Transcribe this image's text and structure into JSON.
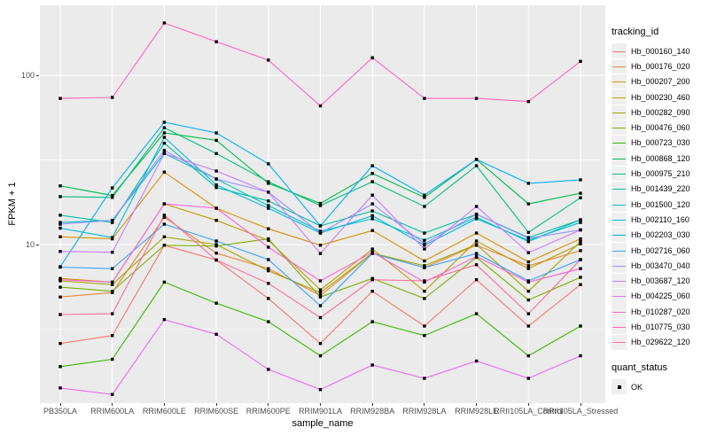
{
  "figure": {
    "xlabel": "sample_name",
    "ylabel": "FPKM + 1",
    "y_ticks": [
      "100",
      "10"
    ],
    "panel_color": "#EBEBEB",
    "grid_color": "#FFFFFF",
    "axis_text_color": "#4D4D4D",
    "marker_color": "#000000"
  },
  "legend": {
    "tracking_title": "tracking_id",
    "quant_title": "quant_status",
    "quant_items": [
      {
        "label": "OK",
        "marker": "black-square"
      }
    ]
  },
  "chart_data": {
    "type": "line",
    "log_y": true,
    "ylim": [
      1.2,
      230
    ],
    "y_major_gridlines": [
      10,
      100
    ],
    "y_minor_gridlines": [
      3.162,
      31.623
    ],
    "grid": true,
    "legend_position": "right",
    "categories": [
      "PB350LA",
      "RRIM600LA",
      "RRIM600LE",
      "RRIM600SE",
      "RRIM600PE",
      "RRIM901LA",
      "RRIM928BA",
      "RRIM928LA",
      "RRIM928LE",
      "RRII105LA_Control",
      "RRII105LA_Stressed"
    ],
    "series": [
      {
        "name": "Hb_000160_140",
        "color": "#F8766D",
        "values": [
          2.6,
          2.9,
          9.9,
          8.1,
          4.8,
          2.6,
          5.3,
          3.3,
          6.2,
          3.3,
          5.8
        ]
      },
      {
        "name": "Hb_000176_020",
        "color": "#EA8331",
        "values": [
          4.9,
          5.2,
          14.5,
          8.9,
          7.2,
          5.0,
          8.9,
          7.3,
          9.9,
          7.5,
          9.2
        ]
      },
      {
        "name": "Hb_000207_200",
        "color": "#D89000",
        "values": [
          11.1,
          10.8,
          26.8,
          16.4,
          12.4,
          9.9,
          12.1,
          8.0,
          11.7,
          7.9,
          10.8
        ]
      },
      {
        "name": "Hb_000230_460",
        "color": "#C09B00",
        "values": [
          6.3,
          6.0,
          17.4,
          13.9,
          10.6,
          5.4,
          9.4,
          5.3,
          10.5,
          7.2,
          10.1
        ]
      },
      {
        "name": "Hb_000282_090",
        "color": "#A3A500",
        "values": [
          6.1,
          5.8,
          11.1,
          10.0,
          7.0,
          5.2,
          8.9,
          7.5,
          10.0,
          5.3,
          10.4
        ]
      },
      {
        "name": "Hb_000476_060",
        "color": "#7CAE00",
        "values": [
          5.6,
          5.3,
          9.9,
          9.8,
          10.8,
          4.9,
          6.3,
          4.8,
          8.4,
          4.7,
          6.4
        ]
      },
      {
        "name": "Hb_000723_030",
        "color": "#39B600",
        "values": [
          1.9,
          2.1,
          6.0,
          4.5,
          3.5,
          2.2,
          3.5,
          2.9,
          3.9,
          2.2,
          3.3
        ]
      },
      {
        "name": "Hb_000868_120",
        "color": "#00BB4E",
        "values": [
          22.2,
          19.5,
          45.7,
          41.3,
          23.0,
          17.5,
          26.3,
          19.0,
          31.8,
          17.4,
          20.1
        ]
      },
      {
        "name": "Hb_000975_210",
        "color": "#00BF7D",
        "values": [
          19.2,
          19.0,
          49.0,
          34.5,
          23.5,
          17.0,
          23.5,
          16.8,
          29.2,
          11.8,
          18.9
        ]
      },
      {
        "name": "Hb_001439_220",
        "color": "#00C1A3",
        "values": [
          14.9,
          13.5,
          39.7,
          21.7,
          18.1,
          12.9,
          15.8,
          11.7,
          15.1,
          11.0,
          14.0
        ]
      },
      {
        "name": "Hb_001500_120",
        "color": "#00BFC4",
        "values": [
          13.5,
          13.9,
          34.5,
          24.4,
          17.0,
          12.0,
          14.2,
          10.6,
          14.5,
          10.4,
          14.0
        ]
      },
      {
        "name": "Hb_002110_160",
        "color": "#00BAE0",
        "values": [
          12.5,
          11.0,
          43.0,
          22.5,
          16.4,
          11.7,
          14.8,
          9.9,
          14.2,
          10.6,
          13.5
        ]
      },
      {
        "name": "Hb_002203_030",
        "color": "#00B0F6",
        "values": [
          7.4,
          21.6,
          52.8,
          45.7,
          30.0,
          12.9,
          29.2,
          19.6,
          31.8,
          23.0,
          24.1
        ]
      },
      {
        "name": "Hb_002716_060",
        "color": "#35A2FF",
        "values": [
          7.35,
          7.2,
          13.2,
          10.5,
          8.15,
          4.35,
          8.85,
          7.3,
          8.85,
          6.1,
          8.15
        ]
      },
      {
        "name": "Hb_003470_040",
        "color": "#9590FF",
        "values": [
          13.2,
          13.9,
          36.0,
          24.4,
          20.4,
          11.7,
          17.4,
          10.1,
          15.1,
          10.9,
          12.2
        ]
      },
      {
        "name": "Hb_003687_120",
        "color": "#C77CFF",
        "values": [
          9.1,
          9.0,
          34.5,
          27.2,
          20.4,
          8.85,
          19.6,
          9.4,
          16.8,
          8.95,
          12.2
        ]
      },
      {
        "name": "Hb_004225_060",
        "color": "#E76BF3",
        "values": [
          1.42,
          1.3,
          3.6,
          2.95,
          1.83,
          1.39,
          1.94,
          1.62,
          2.05,
          1.62,
          2.2
        ]
      },
      {
        "name": "Hb_010287_020",
        "color": "#FA62DB",
        "values": [
          6.2,
          6.0,
          17.4,
          16.4,
          9.65,
          6.1,
          9.0,
          6.0,
          8.5,
          6.0,
          7.2
        ]
      },
      {
        "name": "Hb_010775_030",
        "color": "#FF62BC",
        "values": [
          73,
          74,
          204,
          158,
          123,
          66,
          127,
          73,
          73,
          70,
          121
        ]
      },
      {
        "name": "Hb_029622_120",
        "color": "#FF6A98",
        "values": [
          3.86,
          3.9,
          14.9,
          8.1,
          5.9,
          3.7,
          6.2,
          6.1,
          7.6,
          3.9,
          8.15
        ]
      }
    ],
    "marker": {
      "shape": "square",
      "color": "#000000",
      "legend_label": "OK"
    },
    "title": "",
    "xlabel": "sample_name",
    "ylabel": "FPKM + 1"
  }
}
